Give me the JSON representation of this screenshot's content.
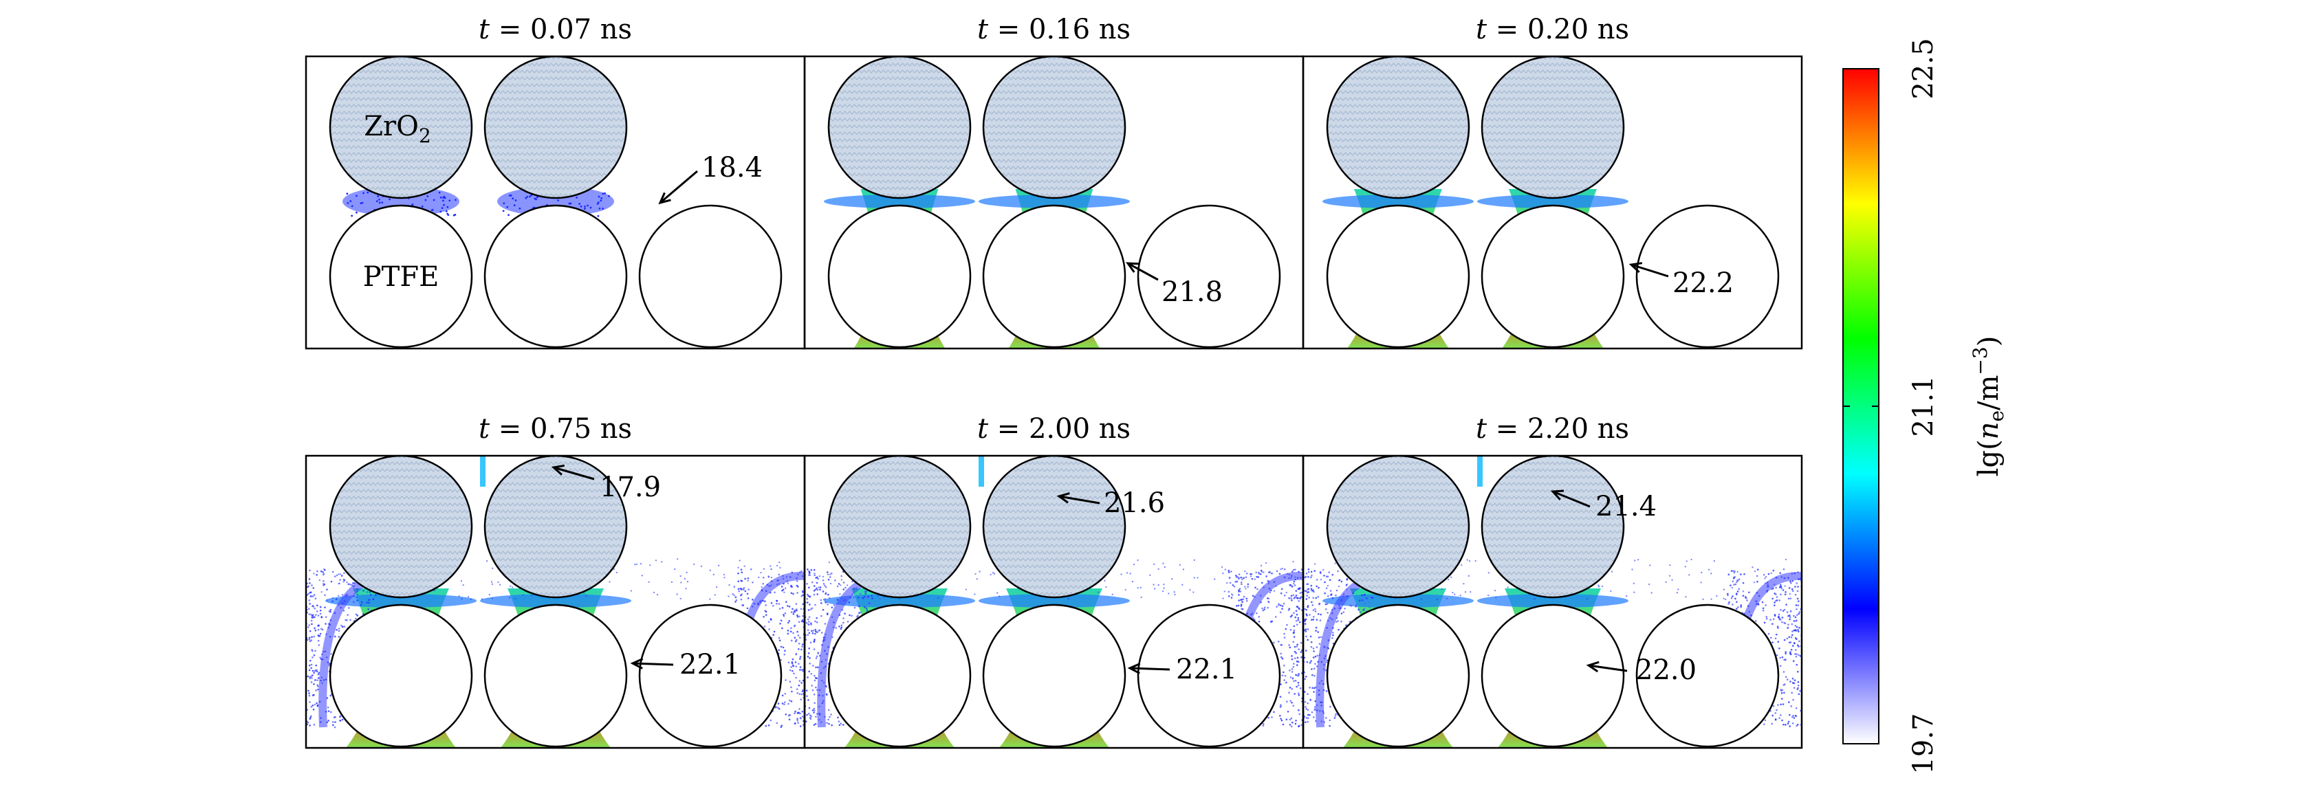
{
  "panels": [
    {
      "time_label": "t = 0.07 ns",
      "annotations": [
        "ZrO2",
        "PTFE",
        "18.4"
      ]
    },
    {
      "time_label": "t = 0.16 ns",
      "annotations": [
        "21.8"
      ]
    },
    {
      "time_label": "t = 0.20 ns",
      "annotations": [
        "22.2"
      ]
    },
    {
      "time_label": "t = 0.75 ns",
      "annotations": [
        "17.9",
        "22.1"
      ]
    },
    {
      "time_label": "t = 2.00 ns",
      "annotations": [
        "21.6",
        "22.1"
      ]
    },
    {
      "time_label": "t = 2.20 ns",
      "annotations": [
        "21.4",
        "22.0"
      ]
    }
  ],
  "labels": {
    "zro2_text": "ZrO",
    "zro2_sub": "2",
    "ptfe": "PTFE"
  },
  "colorbar": {
    "label_prefix": "lg(",
    "label_var": "n",
    "label_var_sub": "e",
    "label_unit": "/m",
    "label_unit_sup": "−3",
    "label_suffix": ")",
    "ticks": [
      "22.5",
      "21.1",
      "19.7"
    ],
    "colormap": [
      "#ffffff",
      "#0000ff",
      "#00ffff",
      "#00ff00",
      "#ffff00",
      "#ff0000"
    ]
  },
  "style": {
    "dielectric_fill": "#c9d6e6",
    "line": "#000000"
  }
}
